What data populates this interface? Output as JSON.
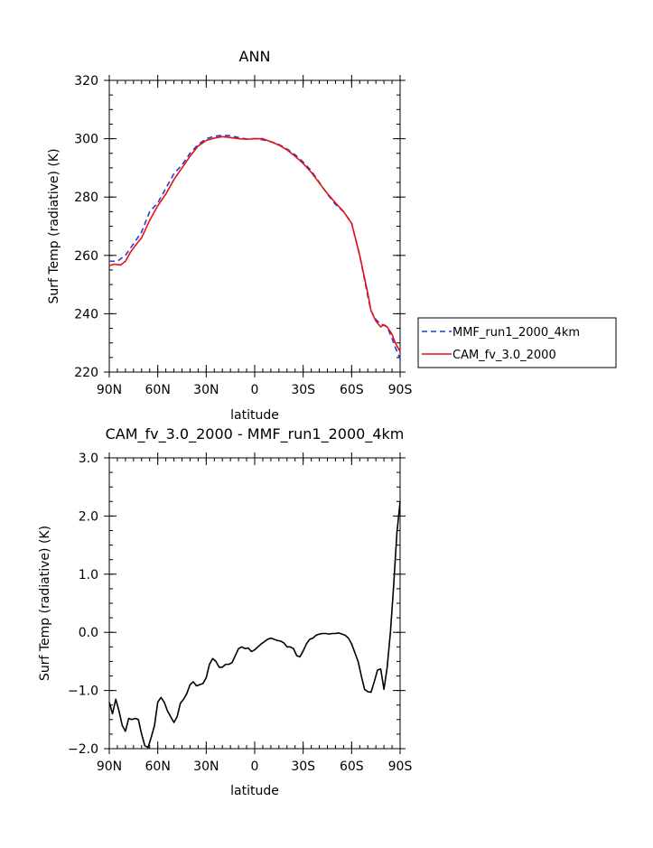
{
  "chart_data": [
    {
      "type": "line",
      "title": "ANN",
      "xlabel": "latitude",
      "ylabel": "Surf Temp (radiative) (K)",
      "xlim": [
        90,
        -90
      ],
      "ylim": [
        220,
        320
      ],
      "x_ticks": [
        90,
        60,
        30,
        0,
        -30,
        -60,
        -90
      ],
      "x_tick_labels": [
        "90N",
        "60N",
        "30N",
        "0",
        "30S",
        "60S",
        "90S"
      ],
      "y_ticks": [
        220,
        240,
        260,
        280,
        300,
        320
      ],
      "y_tick_labels": [
        "220",
        "240",
        "260",
        "280",
        "300",
        "320"
      ],
      "grid": false,
      "legend_position": "right",
      "series": [
        {
          "name": "MMF_run1_2000_4km",
          "color": "#1f3fd0",
          "dash": "dashed",
          "x": [
            90,
            85,
            80,
            75,
            70,
            65,
            60,
            55,
            50,
            45,
            40,
            35,
            30,
            25,
            20,
            15,
            10,
            5,
            0,
            -5,
            -10,
            -15,
            -20,
            -25,
            -30,
            -35,
            -40,
            -45,
            -50,
            -55,
            -60,
            -65,
            -70,
            -72,
            -75,
            -78,
            -80,
            -82,
            -85,
            -87,
            -90
          ],
          "y": [
            258,
            258,
            260,
            264,
            268,
            275,
            278,
            283,
            288,
            291,
            295,
            298,
            300,
            300.8,
            301.2,
            301,
            300.4,
            299.9,
            300,
            299.6,
            299,
            298,
            296.5,
            294.5,
            292,
            289,
            285,
            281,
            277.5,
            275,
            271,
            260,
            246,
            241,
            238,
            236.5,
            236,
            235.5,
            231.5,
            228.5,
            224.5
          ]
        },
        {
          "name": "CAM_fv_3.0_2000",
          "color": "#e81010",
          "dash": "solid",
          "x": [
            90,
            87,
            83,
            80,
            77,
            73,
            70,
            65,
            60,
            55,
            50,
            45,
            40,
            35,
            30,
            25,
            20,
            15,
            10,
            5,
            0,
            -5,
            -10,
            -15,
            -20,
            -25,
            -30,
            -35,
            -40,
            -45,
            -50,
            -55,
            -60,
            -65,
            -70,
            -72,
            -75,
            -78,
            -80,
            -82,
            -85,
            -87,
            -90
          ],
          "y": [
            256.5,
            257,
            256.7,
            258,
            261,
            264,
            266,
            272,
            277,
            281,
            286,
            290,
            294,
            297.5,
            299.4,
            300.2,
            300.7,
            300.4,
            300,
            299.8,
            300,
            300,
            299,
            297.8,
            296.2,
            294,
            291.5,
            288.5,
            284.8,
            281.2,
            278,
            275,
            271,
            260,
            247,
            241,
            237.5,
            235.5,
            236.2,
            235.5,
            233,
            230,
            227
          ]
        }
      ]
    },
    {
      "type": "line",
      "title": "CAM_fv_3.0_2000 - MMF_run1_2000_4km",
      "xlabel": "latitude",
      "ylabel": "Surf Temp (radiative) (K)",
      "xlim": [
        90,
        -90
      ],
      "ylim": [
        -2.0,
        3.0
      ],
      "x_ticks": [
        90,
        60,
        30,
        0,
        -30,
        -60,
        -90
      ],
      "x_tick_labels": [
        "90N",
        "60N",
        "30N",
        "0",
        "30S",
        "60S",
        "90S"
      ],
      "y_ticks": [
        -2.0,
        -1.0,
        0.0,
        1.0,
        2.0,
        3.0
      ],
      "y_tick_labels": [
        "−2.0",
        "−1.0",
        "0.0",
        "1.0",
        "2.0",
        "3.0"
      ],
      "grid": false,
      "series": [
        {
          "color": "#000000",
          "dash": "solid",
          "x": [
            90,
            88,
            86,
            84,
            82,
            80,
            78,
            76,
            74,
            72,
            70,
            68,
            66,
            64,
            62,
            60,
            58,
            56,
            54,
            52,
            50,
            48,
            46,
            44,
            42,
            40,
            38,
            36,
            34,
            32,
            30,
            28,
            26,
            24,
            22,
            20,
            18,
            16,
            14,
            12,
            10,
            8,
            6,
            4,
            2,
            0,
            -2,
            -4,
            -6,
            -8,
            -10,
            -12,
            -14,
            -16,
            -18,
            -20,
            -22,
            -24,
            -26,
            -28,
            -30,
            -32,
            -34,
            -36,
            -38,
            -40,
            -42,
            -44,
            -46,
            -48,
            -50,
            -52,
            -54,
            -56,
            -58,
            -60,
            -62,
            -64,
            -66,
            -68,
            -70,
            -72,
            -74,
            -76,
            -78,
            -80,
            -82,
            -84,
            -86,
            -88,
            -90
          ],
          "y": [
            -1.2,
            -1.4,
            -1.15,
            -1.35,
            -1.6,
            -1.7,
            -1.48,
            -1.5,
            -1.48,
            -1.5,
            -1.75,
            -1.95,
            -1.98,
            -1.8,
            -1.6,
            -1.2,
            -1.12,
            -1.2,
            -1.35,
            -1.45,
            -1.55,
            -1.45,
            -1.22,
            -1.15,
            -1.05,
            -0.9,
            -0.85,
            -0.92,
            -0.9,
            -0.88,
            -0.78,
            -0.55,
            -0.45,
            -0.5,
            -0.6,
            -0.6,
            -0.55,
            -0.55,
            -0.52,
            -0.4,
            -0.28,
            -0.25,
            -0.28,
            -0.27,
            -0.33,
            -0.3,
            -0.25,
            -0.2,
            -0.16,
            -0.12,
            -0.1,
            -0.12,
            -0.14,
            -0.15,
            -0.18,
            -0.25,
            -0.25,
            -0.28,
            -0.4,
            -0.42,
            -0.32,
            -0.2,
            -0.12,
            -0.1,
            -0.05,
            -0.03,
            -0.02,
            -0.02,
            -0.03,
            -0.02,
            -0.02,
            -0.01,
            -0.03,
            -0.05,
            -0.1,
            -0.2,
            -0.35,
            -0.5,
            -0.75,
            -0.98,
            -1.02,
            -1.03,
            -0.85,
            -0.65,
            -0.63,
            -0.98,
            -0.6,
            0.0,
            0.8,
            1.7,
            2.25
          ]
        }
      ]
    }
  ]
}
